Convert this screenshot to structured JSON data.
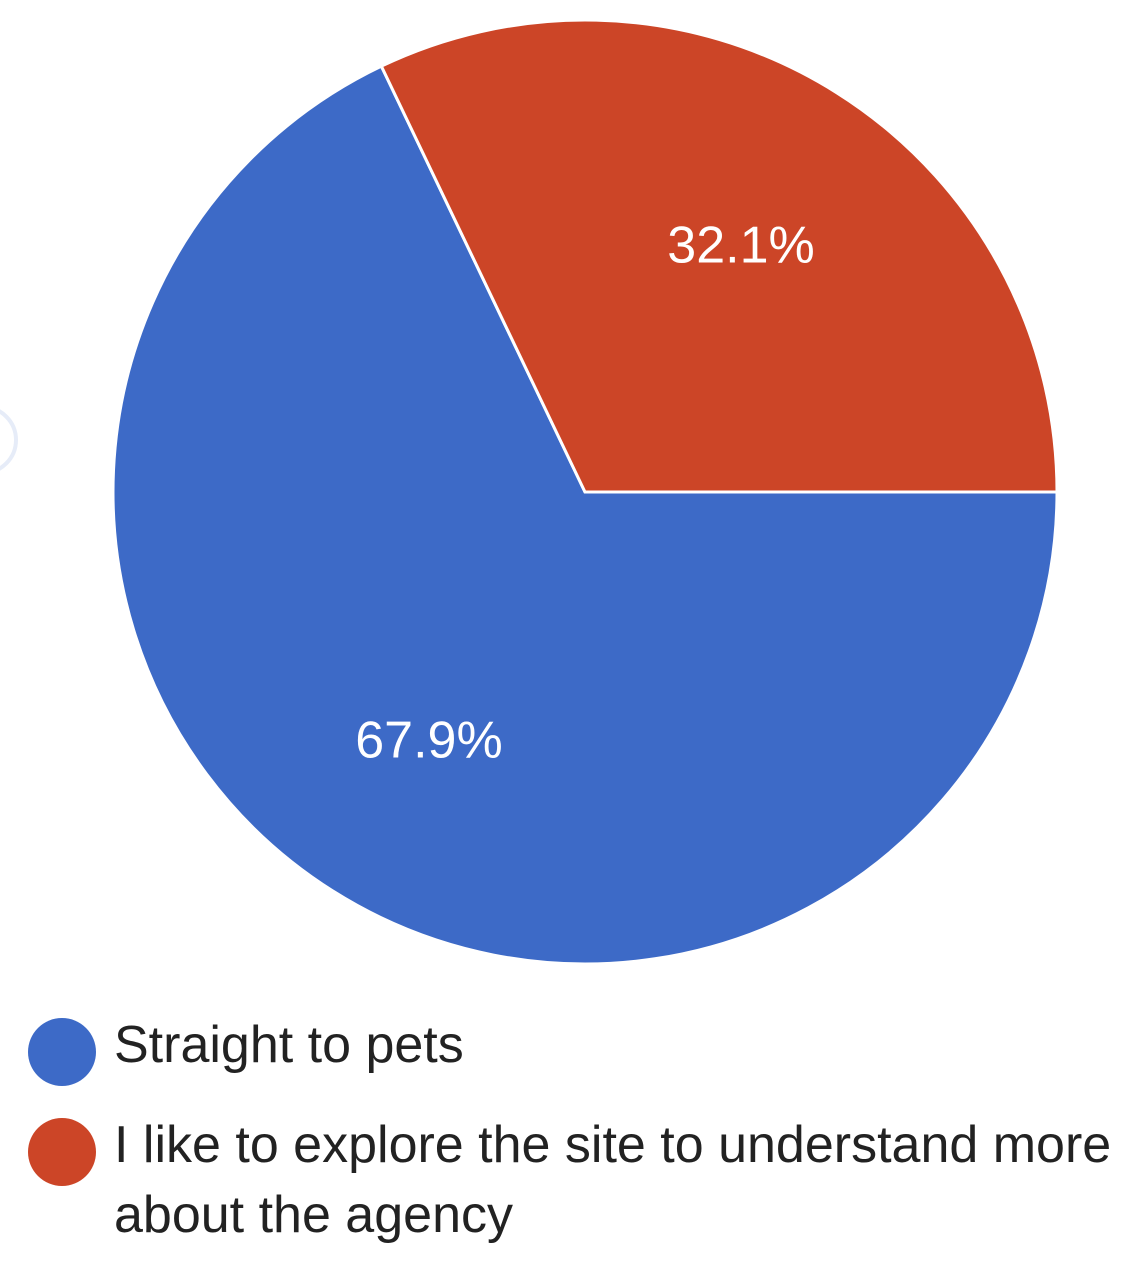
{
  "chart_data": {
    "type": "pie",
    "slices": [
      {
        "label": "Straight to pets",
        "value": 67.9,
        "display": "67.9%",
        "color": "#3d6ac7"
      },
      {
        "label": "I like to explore the site to understand more about the agency",
        "value": 32.1,
        "display": "32.1%",
        "color": "#cc4527"
      }
    ],
    "title": "",
    "legend_position": "bottom-left"
  }
}
